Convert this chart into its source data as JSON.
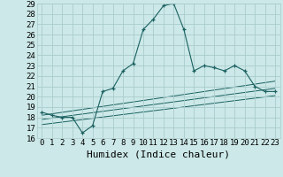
{
  "xlabel": "Humidex (Indice chaleur)",
  "bg_color": "#cce8e8",
  "grid_color": "#aacccc",
  "line_color": "#1a6060",
  "xlim": [
    -0.5,
    23.5
  ],
  "ylim": [
    16,
    29
  ],
  "xticks": [
    0,
    1,
    2,
    3,
    4,
    5,
    6,
    7,
    8,
    9,
    10,
    11,
    12,
    13,
    14,
    15,
    16,
    17,
    18,
    19,
    20,
    21,
    22,
    23
  ],
  "yticks": [
    16,
    17,
    18,
    19,
    20,
    21,
    22,
    23,
    24,
    25,
    26,
    27,
    28,
    29
  ],
  "main_x": [
    0,
    1,
    2,
    3,
    4,
    5,
    6,
    7,
    8,
    9,
    10,
    11,
    12,
    13,
    14,
    15,
    16,
    17,
    18,
    19,
    20,
    21,
    22,
    23
  ],
  "main_y": [
    18.5,
    18.2,
    18.0,
    18.0,
    16.5,
    17.2,
    20.5,
    20.8,
    22.5,
    23.2,
    26.5,
    27.5,
    28.8,
    29.0,
    26.5,
    22.5,
    23.0,
    22.8,
    22.5,
    23.0,
    22.5,
    21.0,
    20.5,
    20.5
  ],
  "line1_x": [
    0,
    23
  ],
  "line1_y": [
    18.2,
    21.5
  ],
  "line2_x": [
    0,
    23
  ],
  "line2_y": [
    17.8,
    20.8
  ],
  "line3_x": [
    0,
    23
  ],
  "line3_y": [
    17.3,
    20.1
  ],
  "fontsize_label": 7,
  "fontsize_tick": 6.5,
  "fontsize_xlabel": 8
}
